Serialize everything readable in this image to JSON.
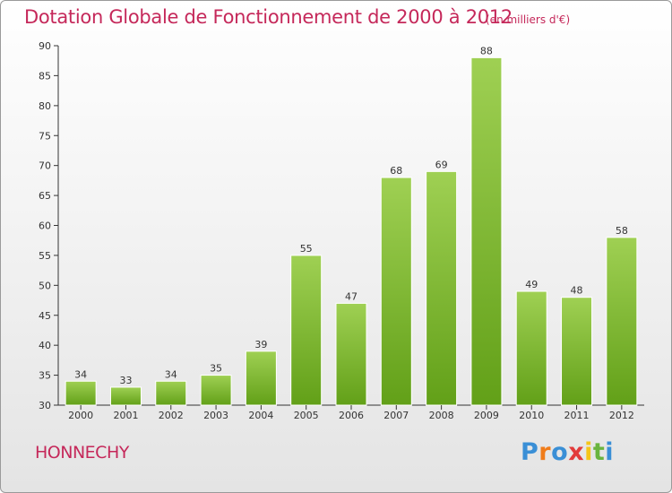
{
  "chart_data": {
    "type": "bar",
    "title": "Dotation Globale de Fonctionnement de 2000 à 2012",
    "subtitle": "(en milliers d'€)",
    "xlabel": "",
    "ylabel": "",
    "categories": [
      "2000",
      "2001",
      "2002",
      "2003",
      "2004",
      "2005",
      "2006",
      "2007",
      "2008",
      "2009",
      "2010",
      "2011",
      "2012"
    ],
    "values": [
      34,
      33,
      34,
      35,
      39,
      55,
      47,
      68,
      69,
      88,
      49,
      48,
      58
    ],
    "ylim": [
      30,
      90
    ],
    "yticks": [
      30,
      35,
      40,
      45,
      50,
      55,
      60,
      65,
      70,
      75,
      80,
      85,
      90
    ],
    "grid": false,
    "bar_color_top": "#9fd053",
    "bar_color_bottom": "#62a018"
  },
  "commune": "HONNECHY",
  "logo": {
    "letters": [
      "P",
      "r",
      "o",
      "x",
      "i",
      "t",
      "i"
    ],
    "colors": [
      "#3a8fd6",
      "#f07c1a",
      "#3a8fd6",
      "#e23b3b",
      "#f5c518",
      "#6ab43e",
      "#3a8fd6"
    ]
  }
}
